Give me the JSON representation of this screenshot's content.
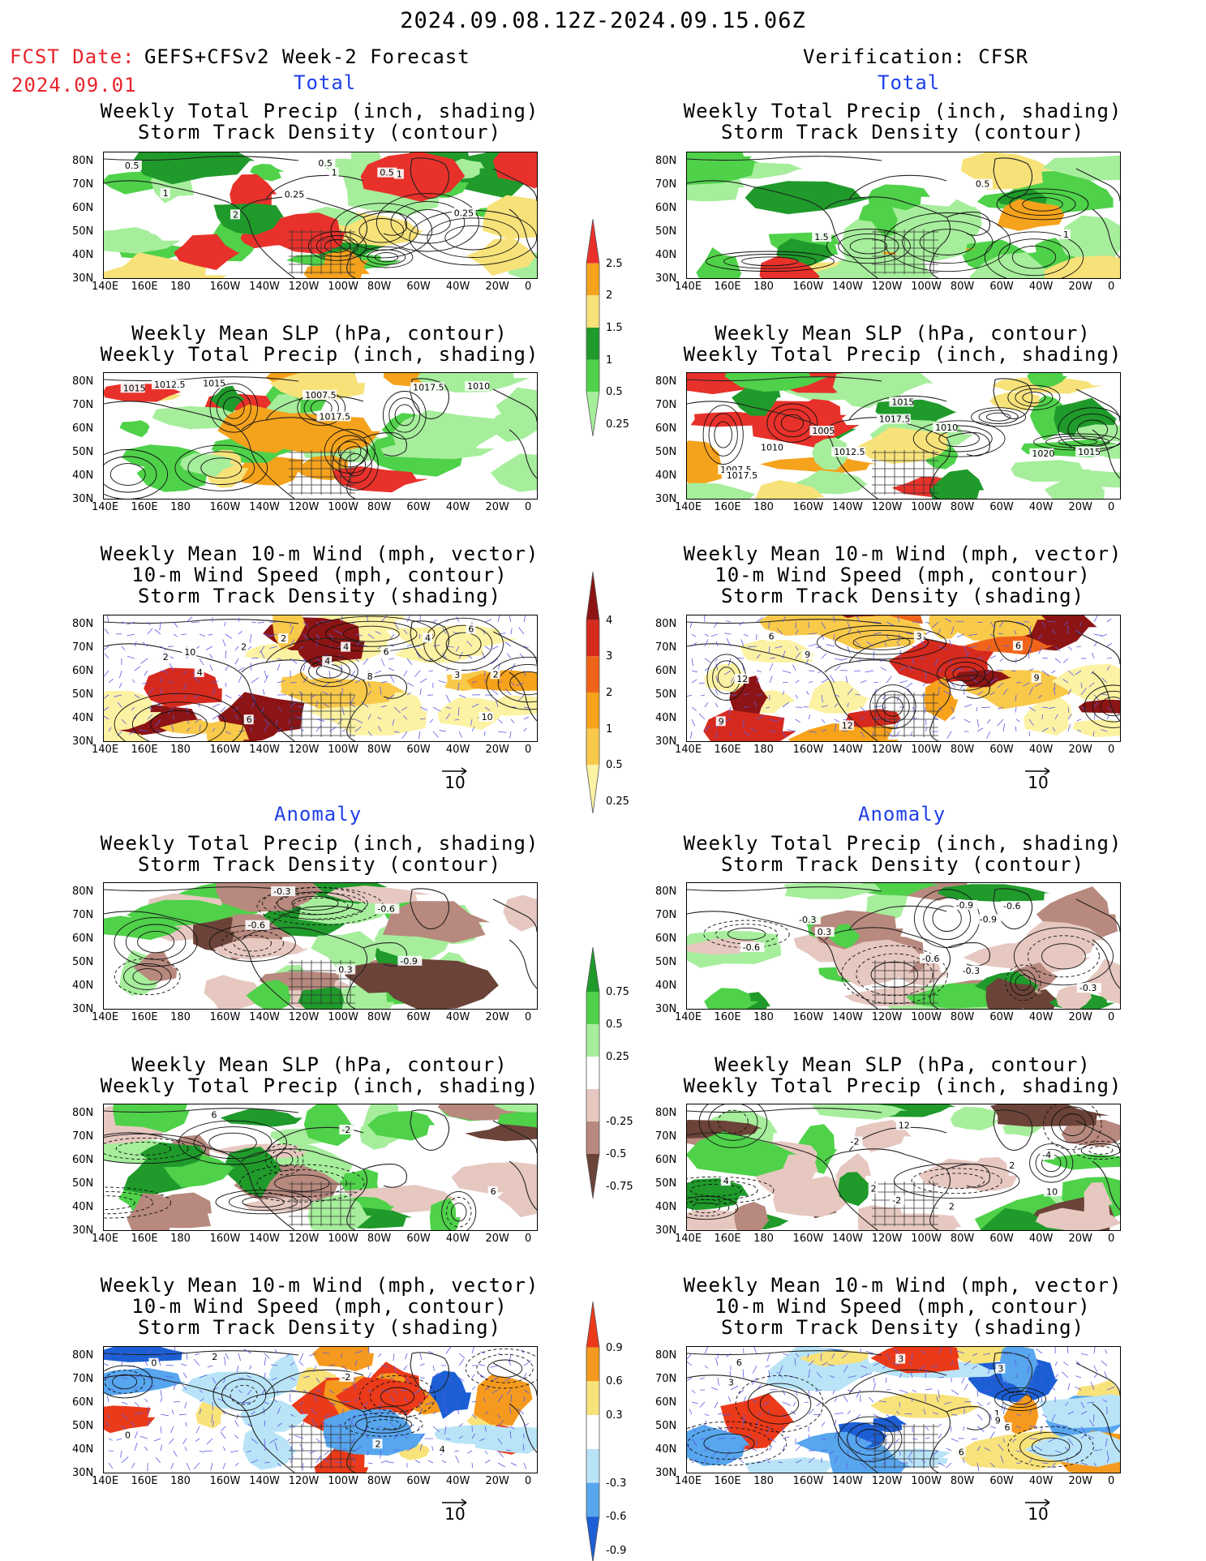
{
  "main_title": "2024.09.08.12Z-2024.09.15.06Z",
  "fcst_label": "FCST Date:",
  "fcst_model": "GEFS+CFSv2 Week-2 Forecast",
  "fcst_date": "2024.09.01",
  "verification": "Verification: CFSR",
  "section_total": "Total",
  "section_anomaly": "Anomaly",
  "panel_titles": {
    "precip_track": [
      "Weekly Total Precip (inch, shading)",
      "Storm Track Density (contour)"
    ],
    "slp_precip": [
      "Weekly Mean SLP (hPa, contour)",
      "Weekly Total Precip (inch, shading)"
    ],
    "wind_track": [
      "Weekly Mean 10-m Wind (mph, vector)",
      "10-m Wind Speed (mph, contour)",
      "Storm Track Density (shading)"
    ]
  },
  "lat_ticks": [
    "80N",
    "70N",
    "60N",
    "50N",
    "40N",
    "30N"
  ],
  "lon_ticks": [
    "140E",
    "160E",
    "180",
    "160W",
    "140W",
    "120W",
    "100W",
    "80W",
    "60W",
    "40W",
    "20W",
    "0"
  ],
  "wind_ref": "10",
  "colorbars": {
    "precip_total": {
      "labels": [
        "2.5",
        "2",
        "1.5",
        "1",
        "0.5",
        "0.25"
      ],
      "colors": [
        "#e8312a",
        "#f5a21c",
        "#f7e27a",
        "#1f9a2b",
        "#4fd14a",
        "#a6ee9c"
      ]
    },
    "track_total": {
      "labels": [
        "4",
        "3",
        "2",
        "1",
        "0.5",
        "0.25"
      ],
      "colors": [
        "#8c1414",
        "#d62a1e",
        "#f0641a",
        "#f6a21b",
        "#f9c94a",
        "#fcf2a3"
      ]
    },
    "precip_anom": {
      "labels": [
        "0.75",
        "0.5",
        "0.25",
        "-0.25",
        "-0.5",
        "-0.75"
      ],
      "colors": [
        "#1f9a2b",
        "#4fd14a",
        "#a6ee9c",
        "#ffffff",
        "#e6c8c0",
        "#b8897e",
        "#6b4338"
      ]
    },
    "track_anom": {
      "labels": [
        "0.9",
        "0.6",
        "0.3",
        "-0.3",
        "-0.6",
        "-0.9"
      ],
      "colors": [
        "#ea3a1a",
        "#f59a1e",
        "#f8e27a",
        "#ffffff",
        "#b9e4f7",
        "#57a6ee",
        "#1c5fd4"
      ]
    }
  },
  "contour_labels": {
    "l1": [
      "1",
      "0.25",
      "0.5",
      "1",
      "2",
      "1",
      "0.5",
      "0.5",
      "0.25"
    ],
    "l2": [
      "1015",
      "1017.5",
      "1010",
      "1007.5",
      "1015",
      "1012.5",
      "1017.5"
    ],
    "l3": [
      "2",
      "4",
      "2",
      "4",
      "2",
      "4",
      "6",
      "6",
      "8",
      "10",
      "10",
      "6",
      "2",
      "4",
      "3"
    ],
    "r1": [
      "0.5",
      "1",
      "1.5"
    ],
    "r2": [
      "1012.5",
      "1015",
      "1010",
      "1007.5",
      "1017.5",
      "1005",
      "1010",
      "1020",
      "1017.5",
      "1015"
    ],
    "r3": [
      "3",
      "9",
      "6",
      "12",
      "9",
      "6",
      "12",
      "9"
    ],
    "la1": [
      "-0.6",
      "-0.3",
      "-0.9",
      "-0.6",
      "0.3"
    ],
    "la2": [
      "6",
      "-2",
      "6"
    ],
    "la3": [
      "2",
      "0",
      "-2",
      "4",
      "0",
      "2"
    ],
    "ra1": [
      "-0.6",
      "-0.9",
      "-0.3",
      "-0.6",
      "-0.3",
      "-0.9",
      "-0.6",
      "0.3",
      "-0.3"
    ],
    "ra2": [
      "4",
      "-2",
      "2",
      "12",
      "10",
      "-4",
      "2",
      "2",
      "-2"
    ],
    "ra3": [
      "3",
      "1",
      "6",
      "3",
      "6",
      "3",
      "9",
      "6"
    ]
  }
}
